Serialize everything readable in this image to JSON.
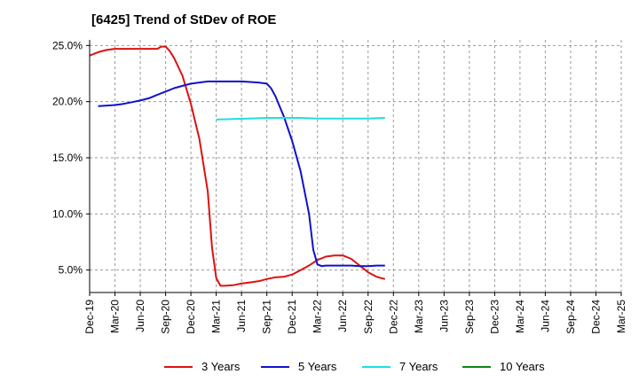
{
  "header": {
    "title": "[6425]  Trend of StDev of ROE"
  },
  "chart_data": {
    "type": "line",
    "title": "[6425]  Trend of StDev of ROE",
    "xlabel": "",
    "ylabel": "",
    "x_ticks": [
      "Dec-19",
      "Mar-20",
      "Jun-20",
      "Sep-20",
      "Dec-20",
      "Mar-21",
      "Jun-21",
      "Sep-21",
      "Dec-21",
      "Mar-22",
      "Jun-22",
      "Sep-22",
      "Dec-22",
      "Mar-23",
      "Jun-23",
      "Sep-23",
      "Dec-23",
      "Mar-24",
      "Jun-24",
      "Sep-24",
      "Dec-24",
      "Mar-25"
    ],
    "y_ticks": [
      "5.0%",
      "10.0%",
      "15.0%",
      "20.0%",
      "25.0%"
    ],
    "ylim": [
      3.0,
      25.5
    ],
    "grid": "horizontal dashed",
    "legend_position": "bottom",
    "series": [
      {
        "name": "3 Years",
        "color": "#dd1111",
        "points": [
          [
            0,
            24.1
          ],
          [
            1,
            24.4
          ],
          [
            2,
            24.6
          ],
          [
            3,
            24.7
          ],
          [
            4,
            24.7
          ],
          [
            5,
            24.7
          ],
          [
            6,
            24.7
          ],
          [
            7,
            24.7
          ],
          [
            8,
            24.7
          ],
          [
            8.5,
            24.9
          ],
          [
            9,
            24.9
          ],
          [
            9.5,
            24.5
          ],
          [
            10,
            23.9
          ],
          [
            11,
            22.3
          ],
          [
            12,
            19.8
          ],
          [
            13,
            16.7
          ],
          [
            14,
            12.0
          ],
          [
            14.5,
            7.0
          ],
          [
            15,
            4.3
          ],
          [
            15.5,
            3.6
          ],
          [
            16,
            3.6
          ],
          [
            17,
            3.65
          ],
          [
            18,
            3.8
          ],
          [
            19,
            3.9
          ],
          [
            20,
            4.0
          ],
          [
            21,
            4.2
          ],
          [
            22,
            4.35
          ],
          [
            23,
            4.4
          ],
          [
            24,
            4.6
          ],
          [
            25,
            5.0
          ],
          [
            26,
            5.4
          ],
          [
            27,
            5.9
          ],
          [
            28,
            6.2
          ],
          [
            29,
            6.3
          ],
          [
            30,
            6.3
          ],
          [
            31,
            6.0
          ],
          [
            32,
            5.4
          ],
          [
            33,
            4.8
          ],
          [
            34,
            4.4
          ],
          [
            35,
            4.2
          ]
        ]
      },
      {
        "name": "5 Years",
        "color": "#1111cc",
        "points": [
          [
            1,
            19.6
          ],
          [
            2,
            19.65
          ],
          [
            3,
            19.7
          ],
          [
            4,
            19.8
          ],
          [
            5,
            19.95
          ],
          [
            6,
            20.1
          ],
          [
            7,
            20.3
          ],
          [
            8,
            20.6
          ],
          [
            9,
            20.9
          ],
          [
            10,
            21.2
          ],
          [
            11,
            21.4
          ],
          [
            12,
            21.6
          ],
          [
            13,
            21.7
          ],
          [
            14,
            21.8
          ],
          [
            15,
            21.8
          ],
          [
            16,
            21.8
          ],
          [
            17,
            21.8
          ],
          [
            18,
            21.8
          ],
          [
            19,
            21.75
          ],
          [
            20,
            21.7
          ],
          [
            21,
            21.6
          ],
          [
            21.5,
            21.2
          ],
          [
            22,
            20.5
          ],
          [
            23,
            18.7
          ],
          [
            24,
            16.5
          ],
          [
            25,
            13.8
          ],
          [
            26,
            10.0
          ],
          [
            26.5,
            6.8
          ],
          [
            27,
            5.5
          ],
          [
            27.5,
            5.35
          ],
          [
            28,
            5.4
          ],
          [
            29,
            5.4
          ],
          [
            30,
            5.4
          ],
          [
            31,
            5.4
          ],
          [
            32,
            5.35
          ],
          [
            33,
            5.35
          ],
          [
            34,
            5.4
          ],
          [
            35,
            5.4
          ]
        ]
      },
      {
        "name": "7 Years",
        "color": "#22dddd",
        "points": [
          [
            15,
            18.4
          ],
          [
            17,
            18.45
          ],
          [
            19,
            18.5
          ],
          [
            21,
            18.55
          ],
          [
            23,
            18.55
          ],
          [
            25,
            18.55
          ],
          [
            27,
            18.5
          ],
          [
            29,
            18.5
          ],
          [
            31,
            18.5
          ],
          [
            33,
            18.5
          ],
          [
            35,
            18.55
          ]
        ]
      },
      {
        "name": "10 Years",
        "color": "#118811",
        "points": []
      }
    ]
  }
}
